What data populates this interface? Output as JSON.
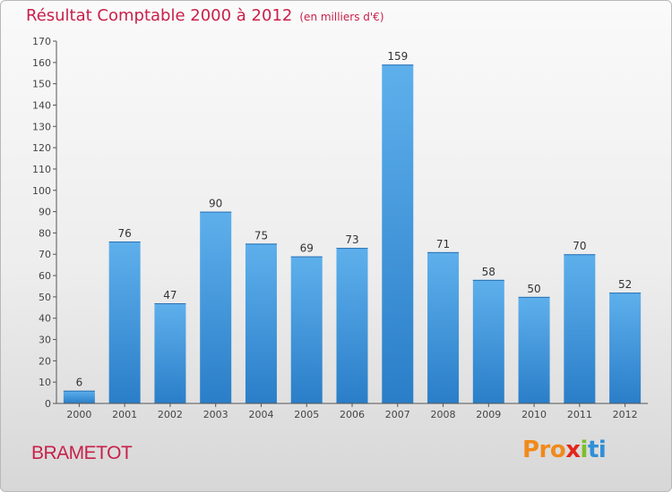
{
  "header": {
    "title": "Résultat Comptable 2000 à 2012",
    "subtitle": "(en milliers d'€)"
  },
  "footer": {
    "commune": "BRAMETOT",
    "logo_parts": [
      "Pro",
      "x",
      "i",
      "ti"
    ]
  },
  "colors": {
    "title": "#c8204a",
    "bar_top": "#5eb0ec",
    "bar_bottom": "#2a7ec8"
  },
  "chart_data": {
    "type": "bar",
    "title": "Résultat Comptable 2000 à 2012 (en milliers d'€)",
    "xlabel": "",
    "ylabel": "",
    "categories": [
      "2000",
      "2001",
      "2002",
      "2003",
      "2004",
      "2005",
      "2006",
      "2007",
      "2008",
      "2009",
      "2010",
      "2011",
      "2012"
    ],
    "values": [
      6,
      76,
      47,
      90,
      75,
      69,
      73,
      159,
      71,
      58,
      50,
      70,
      52
    ],
    "ylim": [
      0,
      170
    ],
    "yticks": [
      0,
      10,
      20,
      30,
      40,
      50,
      60,
      70,
      80,
      90,
      100,
      110,
      120,
      130,
      140,
      150,
      160,
      170
    ],
    "grid": false,
    "data_labels": true
  }
}
